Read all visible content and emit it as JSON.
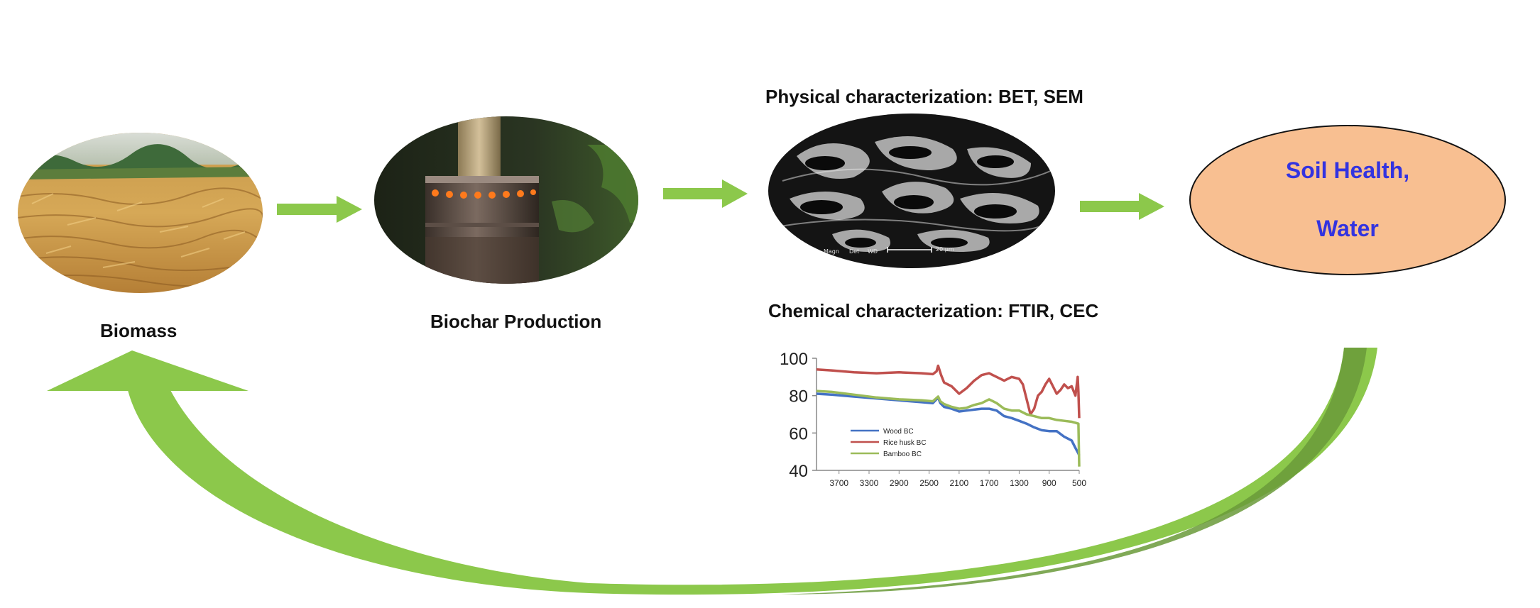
{
  "labels": {
    "biomass": "Biomass",
    "biochar_production": "Biochar Production",
    "physical": "Physical characterization: BET, SEM",
    "chemical": "Chemical characterization: FTIR, CEC"
  },
  "outcome": {
    "line1": "Soil Health,",
    "line2": "Water",
    "fill_color": "#f8bf91",
    "text_color": "#3333e0"
  },
  "sem_overlay": {
    "mag": "Magn",
    "det": "Det",
    "wd": "WD",
    "scale": "20 µm"
  },
  "colors": {
    "arrow": "#8cc84b",
    "arrow_dark": "#6a9a3a"
  },
  "chart_data": {
    "type": "line",
    "title": "",
    "xlabel": "",
    "ylabel": "",
    "x_reversed": true,
    "xlim": [
      4000,
      500
    ],
    "ylim": [
      40,
      100
    ],
    "yticks": [
      40,
      60,
      80,
      100
    ],
    "xticks": [
      3700,
      3300,
      2900,
      2500,
      2100,
      1700,
      1300,
      900,
      500
    ],
    "legend_position": "lower-left",
    "series": [
      {
        "name": "Wood BC",
        "color": "#4472c4",
        "x": [
          4000,
          3800,
          3500,
          3200,
          2900,
          2600,
          2450,
          2380,
          2350,
          2300,
          2200,
          2100,
          2000,
          1900,
          1800,
          1700,
          1600,
          1500,
          1400,
          1300,
          1200,
          1100,
          1000,
          900,
          800,
          700,
          600,
          550,
          510,
          500
        ],
        "y": [
          81,
          80.5,
          79.5,
          78.5,
          77.5,
          76.5,
          76,
          79,
          76,
          74,
          73,
          71.5,
          72,
          72.5,
          73,
          73,
          72,
          69,
          68,
          66.5,
          65,
          63,
          61.5,
          61,
          61,
          58,
          56,
          52,
          49,
          48
        ]
      },
      {
        "name": "Rice husk BC",
        "color": "#c0504d",
        "x": [
          4000,
          3800,
          3500,
          3200,
          2900,
          2600,
          2450,
          2400,
          2380,
          2340,
          2300,
          2200,
          2100,
          2000,
          1900,
          1800,
          1700,
          1600,
          1500,
          1400,
          1300,
          1250,
          1200,
          1150,
          1100,
          1050,
          1000,
          950,
          900,
          850,
          800,
          750,
          700,
          650,
          600,
          550,
          520,
          510,
          500
        ],
        "y": [
          94,
          93.5,
          92.5,
          92,
          92.5,
          92,
          91.5,
          93,
          96,
          91,
          87,
          85,
          81,
          84,
          88,
          91,
          92,
          90,
          88,
          90,
          89,
          86,
          78,
          70,
          73,
          80,
          82,
          86,
          89,
          85,
          81,
          83,
          86,
          84,
          85,
          80,
          90,
          82,
          68
        ]
      },
      {
        "name": "Bamboo BC",
        "color": "#9bbb59",
        "x": [
          4000,
          3800,
          3500,
          3200,
          2900,
          2600,
          2450,
          2380,
          2350,
          2300,
          2200,
          2100,
          2000,
          1900,
          1800,
          1700,
          1600,
          1500,
          1400,
          1300,
          1200,
          1100,
          1000,
          900,
          800,
          700,
          600,
          550,
          510,
          500
        ],
        "y": [
          82.5,
          82,
          80.5,
          79,
          78,
          77.5,
          77,
          79.5,
          77,
          75.5,
          74,
          73,
          73.5,
          75,
          76,
          78,
          76,
          73,
          72,
          72,
          70,
          69,
          68,
          68,
          67,
          66.5,
          66,
          65.5,
          65,
          42
        ]
      }
    ]
  }
}
